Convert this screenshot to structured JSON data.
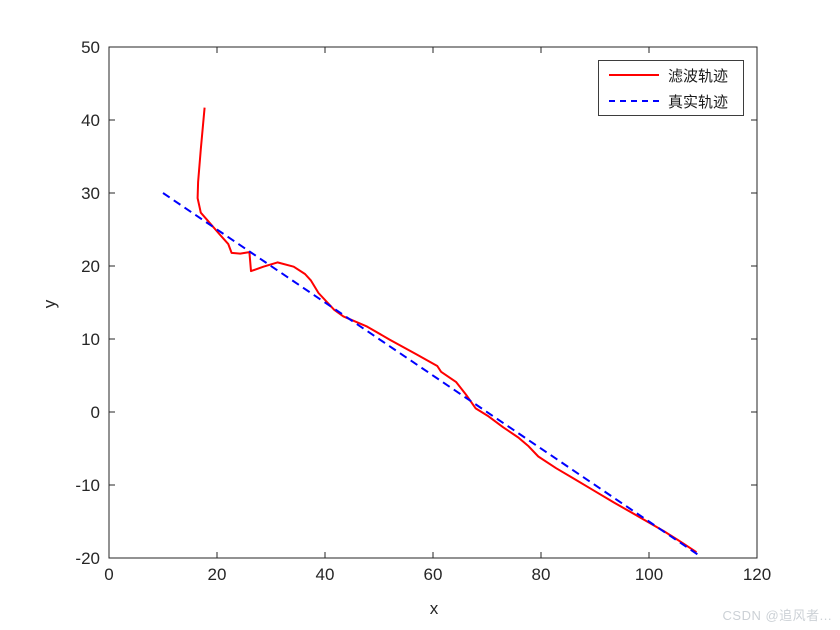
{
  "watermark": {
    "text": "CSDN @追风者..."
  },
  "colors": {
    "axis": "#262626",
    "tick_label": "#262626",
    "legend_border": "#3d3d3d",
    "watermark": "#ccd1d6",
    "background": "#ffffff"
  },
  "chart_data": {
    "type": "line",
    "title": "",
    "xlabel": "x",
    "ylabel": "y",
    "xlim": [
      0,
      120
    ],
    "ylim": [
      -20,
      50
    ],
    "xticks": [
      0,
      20,
      40,
      60,
      80,
      100,
      120
    ],
    "yticks": [
      -20,
      -10,
      0,
      10,
      20,
      30,
      40,
      50
    ],
    "grid": false,
    "legend_position": "top-right",
    "series": [
      {
        "name": "滤波轨迹",
        "color": "#ff0000",
        "style": "solid",
        "points": [
          [
            17.7,
            41.7
          ],
          [
            17.0,
            36.0
          ],
          [
            16.5,
            31.5
          ],
          [
            16.4,
            29.3
          ],
          [
            17.0,
            27.3
          ],
          [
            18.3,
            26.2
          ],
          [
            20.4,
            24.4
          ],
          [
            22.1,
            23.0
          ],
          [
            22.7,
            21.8
          ],
          [
            24.3,
            21.7
          ],
          [
            26.0,
            21.9
          ],
          [
            26.3,
            19.3
          ],
          [
            28.6,
            19.9
          ],
          [
            31.2,
            20.5
          ],
          [
            34.2,
            19.9
          ],
          [
            36.3,
            18.9
          ],
          [
            37.4,
            18.0
          ],
          [
            38.8,
            16.3
          ],
          [
            41.7,
            14.0
          ],
          [
            43.4,
            13.1
          ],
          [
            47.8,
            11.7
          ],
          [
            52.0,
            9.9
          ],
          [
            56.9,
            7.9
          ],
          [
            60.8,
            6.3
          ],
          [
            61.5,
            5.5
          ],
          [
            64.3,
            4.1
          ],
          [
            66.1,
            2.4
          ],
          [
            67.9,
            0.5
          ],
          [
            70.3,
            -0.6
          ],
          [
            73.0,
            -2.1
          ],
          [
            75.8,
            -3.5
          ],
          [
            77.7,
            -4.7
          ],
          [
            79.5,
            -6.1
          ],
          [
            82.8,
            -7.7
          ],
          [
            86.0,
            -9.1
          ],
          [
            89.2,
            -10.5
          ],
          [
            93.5,
            -12.4
          ],
          [
            97.8,
            -14.2
          ],
          [
            102.7,
            -16.3
          ],
          [
            105.5,
            -17.6
          ],
          [
            108.8,
            -19.2
          ]
        ]
      },
      {
        "name": "真实轨迹",
        "color": "#0000ff",
        "style": "dashed",
        "points": [
          [
            10,
            30
          ],
          [
            109,
            -19.5
          ]
        ]
      }
    ]
  }
}
